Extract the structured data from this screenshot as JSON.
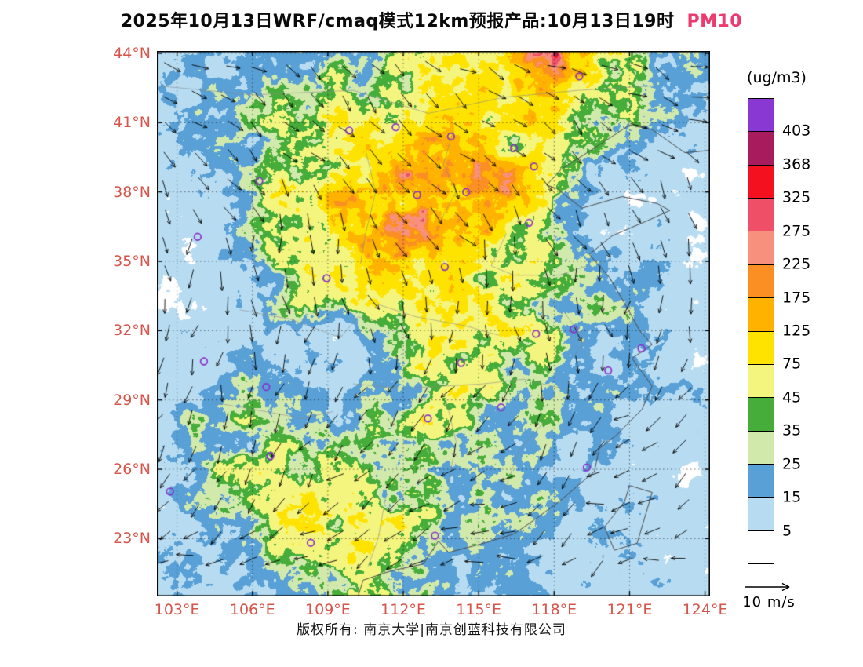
{
  "title": {
    "main": "2025年10月13日WRF/cmaq模式12km预报产品:10月13日19时",
    "pollutant": "PM10"
  },
  "footer": {
    "copyright": "版权所有: 南京大学|南京创蓝科技有限公司"
  },
  "colorbar": {
    "unit_label": "(ug/m3)",
    "levels": [
      5,
      15,
      25,
      35,
      45,
      75,
      125,
      175,
      225,
      275,
      325,
      368,
      403
    ],
    "colors_low_to_high": [
      "#ffffff",
      "#b7dcf2",
      "#58a0d6",
      "#d2e9ac",
      "#46ad3a",
      "#f4f57e",
      "#ffe300",
      "#ffb300",
      "#fb8f23",
      "#f7917e",
      "#ef5068",
      "#f5101f",
      "#a81b5c",
      "#8a38d4"
    ]
  },
  "axes": {
    "lat_labels": [
      "44°N",
      "41°N",
      "38°N",
      "35°N",
      "32°N",
      "29°N",
      "26°N",
      "23°N"
    ],
    "lat_values": [
      44,
      41,
      38,
      35,
      32,
      29,
      26,
      23
    ],
    "lon_labels": [
      "103°E",
      "106°E",
      "109°E",
      "112°E",
      "115°E",
      "118°E",
      "121°E",
      "124°E"
    ],
    "lon_values": [
      103,
      106,
      109,
      112,
      115,
      118,
      121,
      124
    ]
  },
  "wind_legend": {
    "label": "10 m/s"
  },
  "colors": {
    "axis_label": "#d6544a",
    "pollutant_accent": "#ef3a70",
    "city_marker": "#8b30c9",
    "gridline": "#000000",
    "coastline": "#4a4a4a",
    "boundary": "#8a8a8a",
    "wind_vector": "#000000"
  },
  "chart_data": {
    "type": "heatmap",
    "title": "2025年10月13日WRF/cmaq模式12km预报产品:10月13日19时 PM10",
    "variable": "PM10",
    "units": "ug/m3",
    "lon_range": [
      102.2,
      124.2
    ],
    "lat_range": [
      20.5,
      44.1
    ],
    "lon_ticks": [
      103,
      106,
      109,
      112,
      115,
      118,
      121,
      124
    ],
    "lat_ticks": [
      23,
      26,
      29,
      32,
      35,
      38,
      41,
      44
    ],
    "levels": [
      5,
      15,
      25,
      35,
      45,
      75,
      125,
      175,
      225,
      275,
      325,
      368,
      403
    ],
    "legend_position": "right",
    "grid_on": true,
    "wind_reference": "10 m/s",
    "grid": {
      "lons": [
        102,
        104,
        106,
        108,
        110,
        112,
        114,
        116,
        118,
        120,
        122,
        124
      ],
      "lats": [
        44,
        42,
        40,
        38,
        36,
        34,
        32,
        30,
        28,
        26,
        24,
        22
      ],
      "values": [
        [
          10,
          14,
          18,
          22,
          20,
          40,
          75,
          55,
          240,
          70,
          25,
          14
        ],
        [
          12,
          16,
          20,
          26,
          32,
          60,
          90,
          70,
          110,
          40,
          18,
          12
        ],
        [
          8,
          14,
          26,
          45,
          75,
          105,
          125,
          95,
          45,
          20,
          13,
          10
        ],
        [
          6,
          10,
          22,
          55,
          105,
          140,
          155,
          110,
          28,
          13,
          9,
          7
        ],
        [
          5,
          9,
          28,
          50,
          100,
          145,
          125,
          70,
          22,
          11,
          8,
          6
        ],
        [
          4,
          7,
          18,
          48,
          65,
          88,
          68,
          48,
          28,
          14,
          10,
          8
        ],
        [
          4,
          8,
          12,
          8,
          14,
          28,
          48,
          68,
          55,
          22,
          12,
          9
        ],
        [
          6,
          14,
          20,
          10,
          8,
          30,
          55,
          38,
          22,
          16,
          11,
          9
        ],
        [
          8,
          24,
          30,
          20,
          18,
          38,
          45,
          28,
          18,
          13,
          11,
          9
        ],
        [
          12,
          22,
          34,
          50,
          42,
          32,
          24,
          18,
          14,
          11,
          9,
          7
        ],
        [
          10,
          18,
          28,
          62,
          85,
          55,
          28,
          18,
          14,
          11,
          9,
          7
        ],
        [
          9,
          13,
          18,
          28,
          38,
          28,
          18,
          14,
          11,
          9,
          8,
          6
        ]
      ]
    },
    "city_markers": [
      [
        109.85,
        40.66
      ],
      [
        111.7,
        40.8
      ],
      [
        113.9,
        40.4
      ],
      [
        116.4,
        39.9
      ],
      [
        117.2,
        39.1
      ],
      [
        114.5,
        38.0
      ],
      [
        112.55,
        37.87
      ],
      [
        117.0,
        36.67
      ],
      [
        113.65,
        34.76
      ],
      [
        108.95,
        34.27
      ],
      [
        103.82,
        36.06
      ],
      [
        106.27,
        38.47
      ],
      [
        114.3,
        30.6
      ],
      [
        117.28,
        31.86
      ],
      [
        118.78,
        32.06
      ],
      [
        121.47,
        31.23
      ],
      [
        120.15,
        30.28
      ],
      [
        115.89,
        28.68
      ],
      [
        112.98,
        28.2
      ],
      [
        106.71,
        26.57
      ],
      [
        106.55,
        29.56
      ],
      [
        104.07,
        30.67
      ],
      [
        102.72,
        25.04
      ],
      [
        113.26,
        23.13
      ],
      [
        108.32,
        22.82
      ],
      [
        119.3,
        26.08
      ],
      [
        119.0,
        43.0
      ]
    ],
    "coastline": [
      [
        [
          124.2,
          39.8
        ],
        [
          123.2,
          39.7
        ],
        [
          121.9,
          40.7
        ],
        [
          121.0,
          40.9
        ],
        [
          119.6,
          39.9
        ],
        [
          118.3,
          39.0
        ],
        [
          117.7,
          38.3
        ],
        [
          118.1,
          38.15
        ],
        [
          119.1,
          37.3
        ],
        [
          120.7,
          37.8
        ],
        [
          122.1,
          37.5
        ],
        [
          122.6,
          37.2
        ],
        [
          121.8,
          36.8
        ],
        [
          120.3,
          36.1
        ],
        [
          119.4,
          35.3
        ],
        [
          120.2,
          34.3
        ],
        [
          120.9,
          33.0
        ],
        [
          121.4,
          32.0
        ],
        [
          121.9,
          31.4
        ],
        [
          121.1,
          30.8
        ],
        [
          121.5,
          30.2
        ],
        [
          121.9,
          29.6
        ],
        [
          121.5,
          28.6
        ],
        [
          120.5,
          27.5
        ],
        [
          119.8,
          26.9
        ],
        [
          119.6,
          25.9
        ],
        [
          118.2,
          24.6
        ],
        [
          117.2,
          23.8
        ],
        [
          116.4,
          23.2
        ],
        [
          115.2,
          22.8
        ],
        [
          113.8,
          22.4
        ],
        [
          113.4,
          22.9
        ],
        [
          112.8,
          21.9
        ],
        [
          111.5,
          21.6
        ],
        [
          110.4,
          21.2
        ],
        [
          110.2,
          20.5
        ]
      ],
      [
        [
          121.0,
          25.3
        ],
        [
          121.9,
          25.0
        ],
        [
          121.3,
          22.8
        ],
        [
          120.4,
          22.5
        ],
        [
          120.0,
          23.5
        ],
        [
          120.8,
          24.6
        ],
        [
          121.0,
          25.3
        ]
      ]
    ],
    "boundaries": [
      [
        [
          102.2,
          42.6
        ],
        [
          106,
          42.2
        ],
        [
          110,
          42.4
        ],
        [
          113,
          41.4
        ],
        [
          116,
          42.1
        ],
        [
          119,
          42.4
        ],
        [
          122,
          42.6
        ]
      ],
      [
        [
          110.5,
          39.8
        ],
        [
          110.9,
          38.0
        ],
        [
          110.5,
          36.2
        ],
        [
          110.3,
          34.9
        ]
      ],
      [
        [
          114.0,
          40.7
        ],
        [
          113.6,
          39.2
        ],
        [
          114.1,
          38.0
        ],
        [
          113.5,
          36.8
        ]
      ],
      [
        [
          116.1,
          36.2
        ],
        [
          115.5,
          34.8
        ],
        [
          116.4,
          34.4
        ],
        [
          118.2,
          34.4
        ],
        [
          119.3,
          34.8
        ]
      ],
      [
        [
          105.5,
          32.9
        ],
        [
          107.5,
          32.5
        ],
        [
          109.5,
          31.7
        ],
        [
          110.2,
          32.6
        ],
        [
          111.0,
          32.4
        ]
      ],
      [
        [
          113.7,
          29.0
        ],
        [
          114.1,
          27.2
        ],
        [
          113.8,
          25.4
        ]
      ],
      [
        [
          117.8,
          28.3
        ],
        [
          116.6,
          26.8
        ],
        [
          116.0,
          25.0
        ]
      ],
      [
        [
          111.3,
          24.8
        ],
        [
          111.0,
          23.0
        ],
        [
          110.6,
          21.8
        ]
      ],
      [
        [
          104.4,
          28.9
        ],
        [
          106.0,
          28.6
        ],
        [
          108.0,
          28.2
        ],
        [
          109.2,
          28.5
        ]
      ],
      [
        [
          110.0,
          29.7
        ],
        [
          112.0,
          29.5
        ],
        [
          113.6,
          29.6
        ],
        [
          115.2,
          29.7
        ],
        [
          116.8,
          29.9
        ],
        [
          118.3,
          29.5
        ]
      ],
      [
        [
          110.8,
          33.2
        ],
        [
          112.5,
          32.6
        ],
        [
          114.5,
          32.2
        ],
        [
          115.8,
          31.8
        ]
      ],
      [
        [
          118.4,
          32.8
        ],
        [
          119.2,
          31.6
        ],
        [
          118.8,
          30.9
        ]
      ]
    ]
  }
}
